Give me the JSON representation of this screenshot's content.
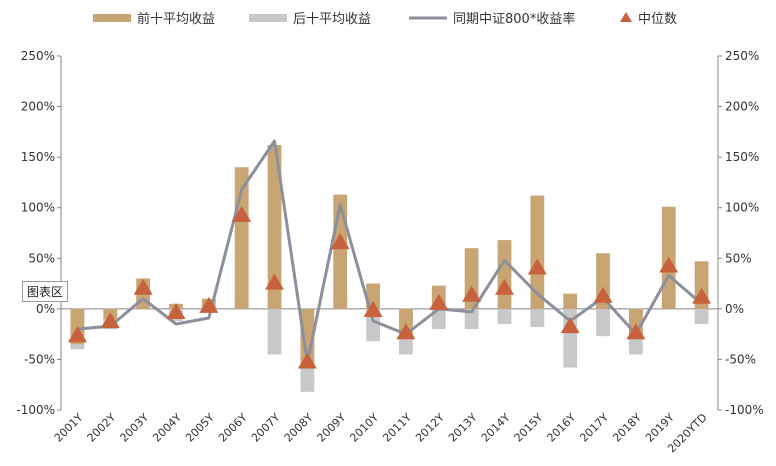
{
  "chart_data": {
    "type": "bar",
    "categories": [
      "2001Y",
      "2002Y",
      "2003Y",
      "2004Y",
      "2005Y",
      "2006Y",
      "2007Y",
      "2008Y",
      "2009Y",
      "2010Y",
      "2011Y",
      "2012Y",
      "2013Y",
      "2014Y",
      "2015Y",
      "2016Y",
      "2017Y",
      "2018Y",
      "2019Y",
      "2020YTD"
    ],
    "series": [
      {
        "name": "前十平均收益",
        "kind": "bar",
        "color": "#c9a574",
        "values": [
          -35,
          -10,
          30,
          5,
          10,
          140,
          162,
          -55,
          113,
          25,
          -25,
          23,
          60,
          68,
          112,
          15,
          55,
          -25,
          101,
          47
        ]
      },
      {
        "name": "后十平均收益",
        "kind": "bar",
        "color": "#c8c8c8",
        "values": [
          -40,
          -20,
          12,
          -12,
          3,
          8,
          -45,
          -82,
          15,
          -32,
          -45,
          -20,
          -20,
          -15,
          -18,
          -58,
          -27,
          -45,
          0,
          -15
        ]
      },
      {
        "name": "同期中证800*收益率",
        "kind": "line",
        "color": "#8c8f9c",
        "values": [
          -20,
          -17,
          10,
          -15,
          -9,
          118,
          166,
          -53,
          103,
          -12,
          -25,
          0,
          -3,
          48,
          15,
          -12,
          11,
          -25,
          33,
          5
        ]
      },
      {
        "name": "中位数",
        "kind": "marker",
        "color": "#c8623c",
        "values": [
          -27,
          -13,
          20,
          -4,
          2,
          92,
          25,
          -53,
          65,
          -2,
          -24,
          5,
          13,
          20,
          40,
          -18,
          12,
          -24,
          42,
          11
        ]
      }
    ],
    "yticks": [
      "250%",
      "200%",
      "150%",
      "100%",
      "50%",
      "0%",
      "-50%",
      "-100%"
    ],
    "ylim": [
      -100,
      250
    ],
    "grid": false,
    "legend_position": "top",
    "title": "",
    "xlabel": "",
    "ylabel": ""
  },
  "overlay_tag": "图表区"
}
